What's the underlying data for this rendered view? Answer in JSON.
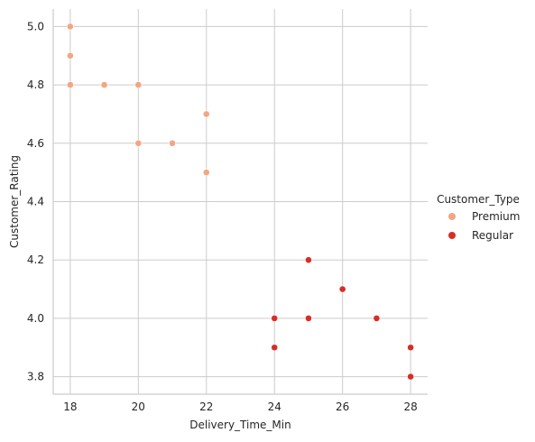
{
  "chart_data": {
    "type": "scatter",
    "xlabel": "Delivery_Time_Min",
    "ylabel": "Customer_Rating",
    "xlim": [
      17.5,
      28.5
    ],
    "ylim": [
      3.74,
      5.06
    ],
    "x_ticks": [
      18,
      20,
      22,
      24,
      26,
      28
    ],
    "y_ticks": [
      3.8,
      4.0,
      4.2,
      4.4,
      4.6,
      4.8,
      5.0
    ],
    "x_tick_labels": [
      "18",
      "20",
      "22",
      "24",
      "26",
      "28"
    ],
    "y_tick_labels": [
      "3.8",
      "4.0",
      "4.2",
      "4.4",
      "4.6",
      "4.8",
      "5.0"
    ],
    "grid": true,
    "legend": {
      "title": "Customer_Type",
      "placement": "right"
    },
    "series": [
      {
        "name": "Premium",
        "color": "#f4a582",
        "points": [
          {
            "x": 18,
            "y": 5.0
          },
          {
            "x": 18,
            "y": 4.9
          },
          {
            "x": 18,
            "y": 4.8
          },
          {
            "x": 19,
            "y": 4.8
          },
          {
            "x": 20,
            "y": 4.8
          },
          {
            "x": 20,
            "y": 4.6
          },
          {
            "x": 21,
            "y": 4.6
          },
          {
            "x": 22,
            "y": 4.7
          },
          {
            "x": 22,
            "y": 4.5
          }
        ]
      },
      {
        "name": "Regular",
        "color": "#d62f27",
        "points": [
          {
            "x": 24,
            "y": 4.0
          },
          {
            "x": 24,
            "y": 3.9
          },
          {
            "x": 25,
            "y": 4.2
          },
          {
            "x": 25,
            "y": 4.0
          },
          {
            "x": 26,
            "y": 4.1
          },
          {
            "x": 27,
            "y": 4.0
          },
          {
            "x": 28,
            "y": 3.9
          },
          {
            "x": 28,
            "y": 3.8
          }
        ]
      }
    ]
  }
}
